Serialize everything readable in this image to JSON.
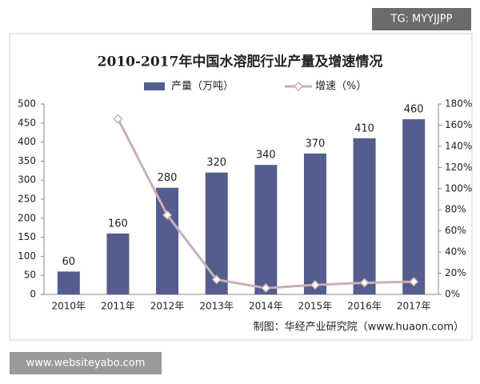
{
  "chart_data": {
    "type": "bar",
    "title": "2010-2017年中国水溶肥行业产量及增速情况",
    "source": "制图：华经产业研究院（www.huaon.com）",
    "categories": [
      "2010年",
      "2011年",
      "2012年",
      "2013年",
      "2014年",
      "2015年",
      "2016年",
      "2017年"
    ],
    "series": [
      {
        "name": "产量（万吨）",
        "type": "bar",
        "color": "#545d8e",
        "values": [
          60,
          160,
          280,
          320,
          340,
          370,
          410,
          460
        ]
      },
      {
        "name": "增速（%）",
        "type": "line",
        "axis": "y2",
        "color": "#c8b0b3",
        "values": [
          null,
          166,
          75,
          14,
          6,
          9,
          11,
          12
        ]
      }
    ],
    "ylim": [
      0,
      500
    ],
    "yticks": [
      0,
      50,
      100,
      150,
      200,
      250,
      300,
      350,
      400,
      450,
      500
    ],
    "y2lim": [
      0,
      180
    ],
    "y2ticks": [
      {
        "value": 0,
        "label": "0%"
      },
      {
        "value": 20,
        "label": "20%"
      },
      {
        "value": 40,
        "label": "40%"
      },
      {
        "value": 60,
        "label": "60%"
      },
      {
        "value": 80,
        "label": "80%"
      },
      {
        "value": 100,
        "label": "100%"
      },
      {
        "value": 120,
        "label": "120%"
      },
      {
        "value": 140,
        "label": "140%"
      },
      {
        "value": 160,
        "label": "160%"
      },
      {
        "value": 180,
        "label": "180%"
      }
    ],
    "legend": "top"
  },
  "watermarks": [
    "TG: MYYJJPP",
    "www.websiteyabo.com"
  ]
}
